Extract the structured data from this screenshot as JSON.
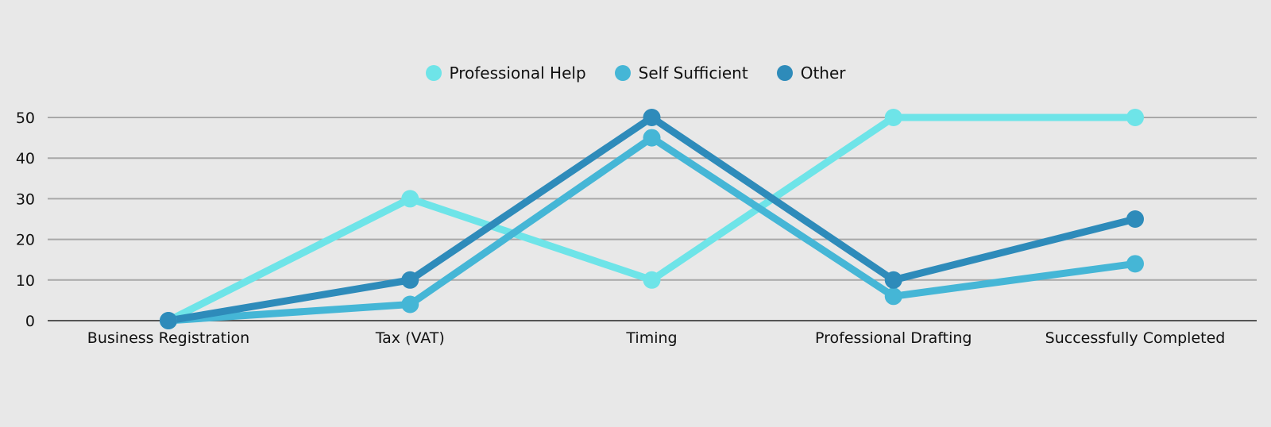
{
  "chart_data": {
    "type": "line",
    "categories": [
      "Business Registration",
      "Tax (VAT)",
      "Timing",
      "Professional Drafting",
      "Successfully Completed"
    ],
    "series": [
      {
        "name": "Professional Help",
        "color": "#6ee4e8",
        "values": [
          0,
          30,
          10,
          50,
          50
        ]
      },
      {
        "name": "Self Sufficient",
        "color": "#45b6d6",
        "values": [
          0,
          4,
          45,
          6,
          14
        ]
      },
      {
        "name": "Other",
        "color": "#2e8bba",
        "values": [
          0,
          10,
          50,
          10,
          25
        ]
      }
    ],
    "y_ticks": [
      0,
      10,
      20,
      30,
      40,
      50
    ],
    "ylim": [
      0,
      50
    ],
    "grid": true,
    "legend_position": "top-center"
  }
}
